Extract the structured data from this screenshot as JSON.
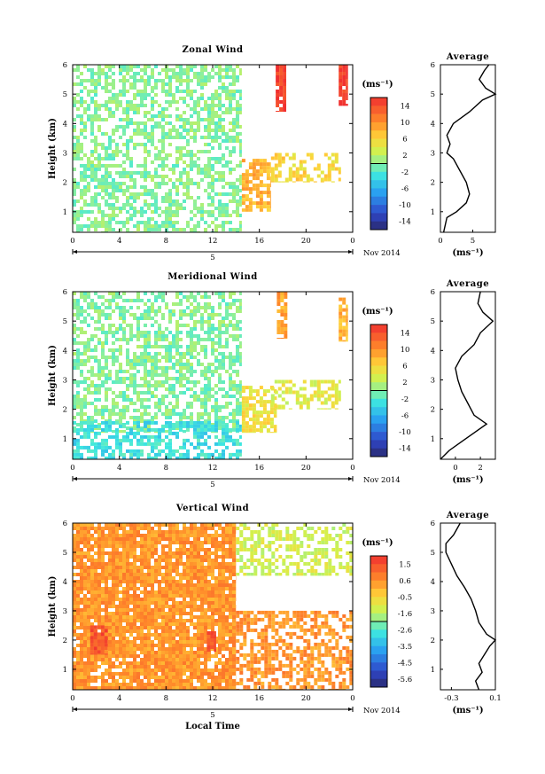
{
  "chart_data": [
    {
      "type": "heatmap",
      "title": "Zonal Wind",
      "ylabel": "Height (km)",
      "x_ticks": [
        "0",
        "4",
        "8",
        "12",
        "16",
        "20",
        "0"
      ],
      "y_ticks": [
        "1",
        "2",
        "3",
        "4",
        "5",
        "6"
      ],
      "xlim": [
        0,
        24
      ],
      "ylim": [
        0.3,
        6
      ],
      "date_marker": "5",
      "date_label": "Nov 2014",
      "colorbar": {
        "unit": "(ms⁻¹)",
        "ticks": [
          "14",
          "10",
          "6",
          "2",
          "-2",
          "-6",
          "-10",
          "-14"
        ],
        "range": [
          -16,
          16
        ]
      },
      "regions": [
        {
          "x": [
            0,
            14.5
          ],
          "y": [
            0.3,
            6
          ],
          "value": 0,
          "coverage": 0.55
        },
        {
          "x": [
            14.5,
            17
          ],
          "y": [
            1,
            2.8
          ],
          "value": 8,
          "coverage": 0.7
        },
        {
          "x": [
            17,
            23
          ],
          "y": [
            2,
            3
          ],
          "value": 6,
          "coverage": 0.5
        },
        {
          "x": [
            17.4,
            18.3
          ],
          "y": [
            4.4,
            6
          ],
          "value": 15,
          "coverage": 0.95
        },
        {
          "x": [
            22.8,
            23.6
          ],
          "y": [
            4.6,
            6
          ],
          "value": 15,
          "coverage": 0.9
        }
      ],
      "average": {
        "title": "Average",
        "xlabel": "(ms⁻¹)",
        "x_ticks": [
          "0",
          "5"
        ],
        "xlim": [
          0,
          8.5
        ],
        "height": [
          0.3,
          0.8,
          1.0,
          1.3,
          1.6,
          2.0,
          2.4,
          2.8,
          3.0,
          3.3,
          3.6,
          4.0,
          4.4,
          4.8,
          5.0,
          5.2,
          5.5,
          5.8,
          6.0
        ],
        "value": [
          0.5,
          1.0,
          2.5,
          4.0,
          4.5,
          4.0,
          3.0,
          2.0,
          1.0,
          1.5,
          1.0,
          2.0,
          4.5,
          6.5,
          8.5,
          7.0,
          6.0,
          6.8,
          7.5
        ]
      }
    },
    {
      "type": "heatmap",
      "title": "Meridional Wind",
      "ylabel": "Height (km)",
      "x_ticks": [
        "0",
        "4",
        "8",
        "12",
        "16",
        "20",
        "0"
      ],
      "y_ticks": [
        "1",
        "2",
        "3",
        "4",
        "5",
        "6"
      ],
      "xlim": [
        0,
        24
      ],
      "ylim": [
        0.3,
        6
      ],
      "date_marker": "5",
      "date_label": "Nov 2014",
      "colorbar": {
        "unit": "(ms⁻¹)",
        "ticks": [
          "14",
          "10",
          "6",
          "2",
          "-2",
          "-6",
          "-10",
          "-14"
        ],
        "range": [
          -16,
          16
        ]
      },
      "regions": [
        {
          "x": [
            0,
            14.5
          ],
          "y": [
            1.2,
            6
          ],
          "value": 0,
          "coverage": 0.55
        },
        {
          "x": [
            0,
            14.5
          ],
          "y": [
            0.3,
            1.6
          ],
          "value": -3,
          "coverage": 0.6
        },
        {
          "x": [
            14.5,
            17.5
          ],
          "y": [
            1.2,
            2.8
          ],
          "value": 5,
          "coverage": 0.7
        },
        {
          "x": [
            17,
            23
          ],
          "y": [
            2,
            3
          ],
          "value": 4,
          "coverage": 0.45
        },
        {
          "x": [
            17.5,
            18.4
          ],
          "y": [
            4.4,
            6
          ],
          "value": 9,
          "coverage": 0.9
        },
        {
          "x": [
            22.8,
            23.6
          ],
          "y": [
            4.3,
            5.8
          ],
          "value": 8,
          "coverage": 0.85
        }
      ],
      "average": {
        "title": "Average",
        "xlabel": "(ms⁻¹)",
        "x_ticks": [
          "0",
          "2"
        ],
        "xlim": [
          -1.2,
          3.2
        ],
        "height": [
          0.3,
          0.6,
          0.9,
          1.2,
          1.5,
          1.8,
          2.2,
          2.6,
          3.0,
          3.4,
          3.8,
          4.2,
          4.6,
          5.0,
          5.3,
          5.6,
          6.0
        ],
        "value": [
          -1.2,
          -0.5,
          0.5,
          1.5,
          2.5,
          1.5,
          1.0,
          0.5,
          0.2,
          0.0,
          0.5,
          1.5,
          2.0,
          3.0,
          2.2,
          1.8,
          2.0
        ]
      }
    },
    {
      "type": "heatmap",
      "title": "Vertical Wind",
      "xlabel": "Local Time",
      "ylabel": "Height (km)",
      "x_ticks": [
        "0",
        "4",
        "8",
        "12",
        "16",
        "20",
        "0"
      ],
      "y_ticks": [
        "1",
        "2",
        "3",
        "4",
        "5",
        "6"
      ],
      "xlim": [
        0,
        24
      ],
      "ylim": [
        0.3,
        6
      ],
      "date_marker": "5",
      "date_label": "Nov 2014",
      "colorbar": {
        "unit": "(ms⁻¹)",
        "ticks": [
          "1.5",
          "0.6",
          "-0.5",
          "-1.6",
          "-2.6",
          "-3.5",
          "-4.5",
          "-5.6"
        ],
        "range": [
          -6,
          2
        ]
      },
      "regions": [
        {
          "x": [
            0,
            14
          ],
          "y": [
            0.3,
            6
          ],
          "value": 0.4,
          "coverage": 0.88
        },
        {
          "x": [
            14,
            24
          ],
          "y": [
            0.3,
            3
          ],
          "value": 0.4,
          "coverage": 0.6
        },
        {
          "x": [
            14,
            24
          ],
          "y": [
            4.2,
            6
          ],
          "value": -1.2,
          "coverage": 0.5
        },
        {
          "x": [
            1.5,
            3
          ],
          "y": [
            1.5,
            2.5
          ],
          "value": 1.4,
          "coverage": 0.9
        },
        {
          "x": [
            11.5,
            12.3
          ],
          "y": [
            1.6,
            2.3
          ],
          "value": 1.4,
          "coverage": 0.9
        }
      ],
      "average": {
        "title": "Average",
        "xlabel": "(ms⁻¹)",
        "x_ticks": [
          "-0.3",
          "0.1"
        ],
        "xlim": [
          -0.4,
          0.1
        ],
        "height": [
          0.3,
          0.6,
          0.9,
          1.2,
          1.5,
          1.8,
          2.0,
          2.2,
          2.6,
          3.0,
          3.4,
          3.8,
          4.2,
          4.6,
          5.0,
          5.3,
          5.6,
          6.0
        ],
        "value": [
          -0.05,
          -0.08,
          -0.02,
          -0.05,
          0.0,
          0.05,
          0.1,
          0.02,
          -0.05,
          -0.08,
          -0.12,
          -0.18,
          -0.25,
          -0.3,
          -0.35,
          -0.35,
          -0.28,
          -0.22
        ]
      }
    }
  ]
}
